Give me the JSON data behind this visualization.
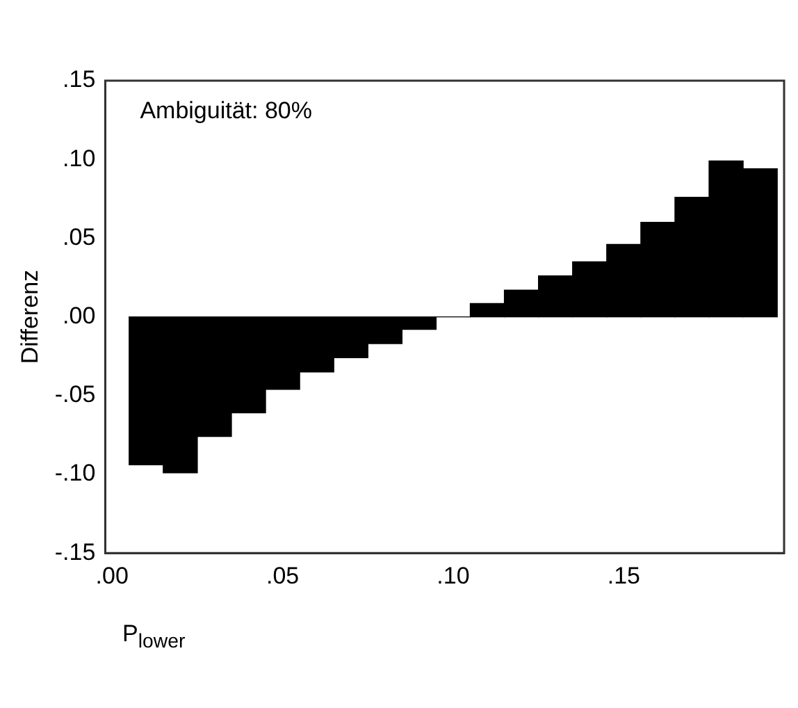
{
  "chart_data": {
    "type": "bar",
    "xlabel": "P$_{lower}$",
    "ylabel": "Differenz",
    "annotations": [
      "Ambiguität: 80%"
    ],
    "x": [
      0.01,
      0.02,
      0.03,
      0.04,
      0.05,
      0.06,
      0.07,
      0.08,
      0.09,
      0.1,
      0.11,
      0.12,
      0.13,
      0.14,
      0.15,
      0.16,
      0.17,
      0.18,
      0.19
    ],
    "values": [
      -0.094,
      -0.099,
      -0.076,
      -0.061,
      -0.046,
      -0.035,
      -0.026,
      -0.017,
      -0.008,
      0,
      0.0085,
      0.017,
      0.026,
      0.035,
      0.046,
      0.06,
      0.076,
      0.099,
      0.094
    ],
    "color": "#000000",
    "xlim": [
      -0.002,
      0.197
    ],
    "ylim": [
      -0.15,
      0.15
    ],
    "xticks": [
      {
        "value": 0,
        "label": ".00"
      },
      {
        "value": 0.05,
        "label": ".05"
      },
      {
        "value": 0.1,
        "label": ".10"
      },
      {
        "value": 0.15,
        "label": ".15"
      }
    ],
    "yticks": [
      {
        "value": -0.15,
        "label": "-.15"
      },
      {
        "value": -0.1,
        "label": "-.10"
      },
      {
        "value": -0.05,
        "label": "-.05"
      },
      {
        "value": 0,
        "label": ".00"
      },
      {
        "value": 0.05,
        "label": ".05"
      },
      {
        "value": 0.1,
        "label": ".10"
      },
      {
        "value": 0.15,
        "label": ".15"
      }
    ],
    "grid": false,
    "legend": false
  }
}
